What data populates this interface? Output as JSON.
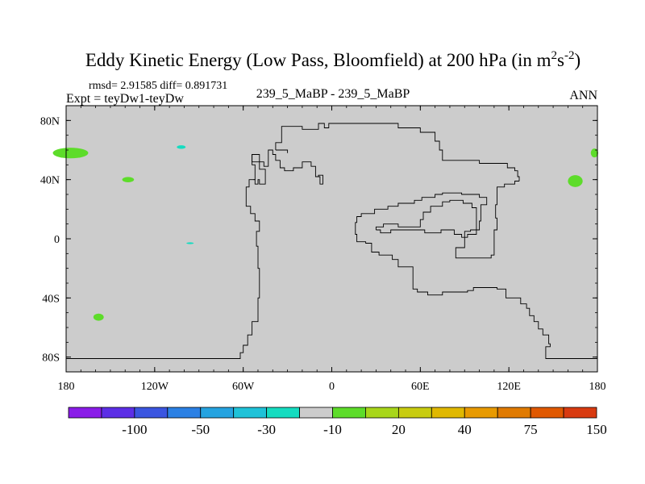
{
  "chart_data": {
    "type": "heatmap",
    "title": "Eddy Kinetic Energy (Low Pass, Bloomfield) at 200 hPa (in m",
    "title_units": {
      "sup1": "2",
      "mid": "s",
      "sup2": "-2",
      "close": ")"
    },
    "stats_label": "rmsd= 2.91585 diff= 0.891731",
    "expt_label": "Expt = teyDw1-teyDw",
    "case_label": "239_5_MaBP - 239_5_MaBP",
    "season_label": "ANN",
    "xlim": [
      -180,
      180
    ],
    "ylim": [
      -90,
      90
    ],
    "x_ticks": [
      {
        "value": -180,
        "label": "180"
      },
      {
        "value": -120,
        "label": "120W"
      },
      {
        "value": -60,
        "label": "60W"
      },
      {
        "value": 0,
        "label": "0"
      },
      {
        "value": 60,
        "label": "60E"
      },
      {
        "value": 120,
        "label": "120E"
      },
      {
        "value": 180,
        "label": "180"
      }
    ],
    "y_ticks": [
      {
        "value": 80,
        "label": "80N"
      },
      {
        "value": 40,
        "label": "40N"
      },
      {
        "value": 0,
        "label": "0"
      },
      {
        "value": -40,
        "label": "40S"
      },
      {
        "value": -80,
        "label": "80S"
      }
    ],
    "background_color": "#cccccc",
    "colorbar": {
      "colors": [
        "#8a1ce8",
        "#5c2ee6",
        "#3a55e0",
        "#2b80e4",
        "#25a3e0",
        "#1fc2d8",
        "#15dcc0",
        "#cccccc",
        "#5ddc2a",
        "#a8d61a",
        "#c8cc10",
        "#e0b800",
        "#e89a00",
        "#e07a00",
        "#e05800",
        "#d83a10"
      ],
      "labels": [
        {
          "index": 2,
          "label": "-100"
        },
        {
          "index": 4,
          "label": "-50"
        },
        {
          "index": 6,
          "label": "-30"
        },
        {
          "index": 8,
          "label": "-10"
        },
        {
          "index": 10,
          "label": "20"
        },
        {
          "index": 12,
          "label": "40"
        },
        {
          "index": 14,
          "label": "75"
        },
        {
          "index": 16,
          "label": "150"
        }
      ]
    },
    "blobs": [
      {
        "name": "blob-green-1",
        "lon": -177,
        "lat": 58,
        "rlon": 12,
        "rlat": 3.6,
        "color": "#5ddc2a"
      },
      {
        "name": "blob-cyan-1",
        "lon": -102,
        "lat": 62,
        "rlon": 3,
        "rlat": 1.2,
        "color": "#15dcc0"
      },
      {
        "name": "blob-green-2",
        "lon": -138,
        "lat": 40,
        "rlon": 4,
        "rlat": 1.8,
        "color": "#5ddc2a"
      },
      {
        "name": "blob-cyan-2",
        "lon": -96,
        "lat": -3,
        "rlon": 2.5,
        "rlat": 0.6,
        "color": "#15dcc0"
      },
      {
        "name": "blob-green-3",
        "lon": -158,
        "lat": -53,
        "rlon": 3.5,
        "rlat": 2.4,
        "color": "#5ddc2a"
      },
      {
        "name": "blob-green-4",
        "lon": 165,
        "lat": 39,
        "rlon": 5,
        "rlat": 4,
        "color": "#5ddc2a"
      },
      {
        "name": "blob-green-5",
        "lon": 178,
        "lat": 58,
        "rlon": 2.5,
        "rlat": 3,
        "color": "#5ddc2a"
      }
    ],
    "coastlines": [
      [
        [
          -180,
          -81
        ],
        [
          -62,
          -81
        ],
        [
          -62,
          -77
        ],
        [
          -60,
          -77
        ],
        [
          -60,
          -72
        ],
        [
          -57,
          -72
        ],
        [
          -57,
          -65
        ],
        [
          -54,
          -65
        ],
        [
          -54,
          -56
        ],
        [
          -50,
          -56
        ],
        [
          -50,
          -40
        ],
        [
          -49,
          -40
        ],
        [
          -49,
          -20
        ],
        [
          -50,
          -20
        ],
        [
          -50,
          -5
        ],
        [
          -51,
          -5
        ],
        [
          -51,
          5
        ],
        [
          -49,
          5
        ],
        [
          -49,
          12
        ],
        [
          -52,
          12
        ],
        [
          -52,
          17
        ],
        [
          -55,
          17
        ],
        [
          -55,
          22
        ],
        [
          -58,
          22
        ],
        [
          -58,
          35
        ],
        [
          -56,
          35
        ],
        [
          -56,
          40
        ],
        [
          -52,
          40
        ],
        [
          -52,
          50
        ],
        [
          -54,
          50
        ],
        [
          -54,
          57
        ],
        [
          -49,
          57
        ],
        [
          -49,
          52
        ],
        [
          -46,
          52
        ],
        [
          -46,
          49
        ],
        [
          -43,
          49
        ],
        [
          -43,
          60
        ],
        [
          -40,
          60
        ],
        [
          -40,
          57
        ],
        [
          -38,
          57
        ],
        [
          -38,
          53
        ],
        [
          -35,
          53
        ],
        [
          -35,
          48
        ],
        [
          -32,
          48
        ],
        [
          -32,
          46
        ],
        [
          -26,
          46
        ],
        [
          -26,
          48
        ],
        [
          -20,
          48
        ],
        [
          -20,
          52
        ],
        [
          -14,
          52
        ],
        [
          -14,
          49
        ],
        [
          -11,
          49
        ],
        [
          -11,
          42
        ],
        [
          -9,
          42
        ],
        [
          -9,
          43
        ],
        [
          -6,
          43
        ],
        [
          -6,
          37
        ],
        [
          -8,
          37
        ],
        [
          -8,
          42
        ],
        [
          -9,
          42
        ]
      ],
      [
        [
          -53,
          40
        ],
        [
          -52,
          40
        ],
        [
          -52,
          37
        ],
        [
          -50,
          37
        ],
        [
          -50,
          40
        ],
        [
          -49,
          40
        ],
        [
          -49,
          37
        ],
        [
          -45,
          37
        ],
        [
          -45,
          47
        ],
        [
          -49,
          47
        ],
        [
          -49,
          52
        ],
        [
          -54,
          52
        ],
        [
          -54,
          57
        ],
        [
          -53,
          57
        ]
      ],
      [
        [
          -38,
          60
        ],
        [
          -38,
          65
        ],
        [
          -34,
          65
        ],
        [
          -34,
          76
        ],
        [
          -20,
          76
        ],
        [
          -20,
          74
        ],
        [
          -9,
          74
        ],
        [
          -9,
          78
        ],
        [
          -5,
          78
        ],
        [
          -5,
          75
        ],
        [
          -2,
          75
        ],
        [
          -2,
          78
        ],
        [
          45,
          78
        ],
        [
          45,
          75
        ],
        [
          60,
          75
        ],
        [
          60,
          72
        ],
        [
          70,
          72
        ],
        [
          70,
          66
        ],
        [
          73,
          66
        ],
        [
          73,
          60
        ],
        [
          75,
          60
        ],
        [
          75,
          53
        ],
        [
          100,
          53
        ],
        [
          100,
          51
        ],
        [
          119,
          51
        ],
        [
          119,
          48
        ],
        [
          124,
          48
        ],
        [
          124,
          46
        ],
        [
          126,
          46
        ],
        [
          126,
          42
        ],
        [
          127,
          42
        ],
        [
          127,
          39
        ]
      ],
      [
        [
          -38,
          60
        ],
        [
          -30,
          60
        ],
        [
          -30,
          58
        ]
      ],
      [
        [
          127,
          39
        ],
        [
          124,
          39
        ],
        [
          124,
          37
        ],
        [
          117,
          37
        ],
        [
          117,
          35
        ],
        [
          112,
          35
        ],
        [
          112,
          23
        ],
        [
          111,
          23
        ],
        [
          111,
          14
        ],
        [
          112,
          14
        ],
        [
          112,
          6
        ],
        [
          110,
          6
        ],
        [
          110,
          -11
        ],
        [
          108,
          -11
        ],
        [
          108,
          -13
        ],
        [
          84,
          -13
        ],
        [
          84,
          -6
        ],
        [
          90,
          -6
        ],
        [
          90,
          5
        ],
        [
          94,
          5
        ],
        [
          94,
          6
        ],
        [
          100,
          6
        ],
        [
          100,
          12
        ],
        [
          101,
          12
        ],
        [
          101,
          23
        ],
        [
          105,
          23
        ],
        [
          105,
          28
        ],
        [
          100,
          28
        ],
        [
          100,
          30
        ],
        [
          88,
          30
        ],
        [
          88,
          31
        ],
        [
          75,
          31
        ],
        [
          75,
          30
        ],
        [
          70,
          30
        ],
        [
          70,
          28
        ],
        [
          61,
          28
        ],
        [
          61,
          26
        ],
        [
          56,
          26
        ],
        [
          56,
          24
        ],
        [
          45,
          24
        ],
        [
          45,
          22
        ],
        [
          38,
          22
        ],
        [
          38,
          20
        ],
        [
          29,
          20
        ],
        [
          29,
          17
        ],
        [
          20,
          17
        ],
        [
          20,
          15
        ],
        [
          17,
          15
        ],
        [
          17,
          11
        ],
        [
          16,
          11
        ],
        [
          16,
          3
        ],
        [
          17,
          3
        ],
        [
          17,
          -2
        ],
        [
          23,
          -2
        ],
        [
          23,
          -3
        ],
        [
          27,
          -3
        ],
        [
          27,
          -9
        ],
        [
          32,
          -9
        ],
        [
          32,
          -11
        ],
        [
          41,
          -11
        ],
        [
          41,
          -14
        ],
        [
          45,
          -14
        ],
        [
          45,
          -19
        ],
        [
          55,
          -19
        ],
        [
          55,
          -34
        ],
        [
          58,
          -34
        ],
        [
          58,
          -36
        ],
        [
          65,
          -36
        ],
        [
          65,
          -38
        ],
        [
          75,
          -38
        ],
        [
          75,
          -36
        ],
        [
          92,
          -36
        ],
        [
          92,
          -35
        ],
        [
          96,
          -35
        ],
        [
          96,
          -33
        ],
        [
          112,
          -33
        ],
        [
          112,
          -34
        ],
        [
          118,
          -34
        ],
        [
          118,
          -40
        ],
        [
          128,
          -40
        ],
        [
          128,
          -44
        ],
        [
          132,
          -44
        ],
        [
          132,
          -47
        ],
        [
          134,
          -47
        ],
        [
          134,
          -52
        ],
        [
          137,
          -52
        ],
        [
          137,
          -56
        ],
        [
          140,
          -56
        ],
        [
          140,
          -61
        ],
        [
          143,
          -61
        ],
        [
          143,
          -65
        ],
        [
          147,
          -65
        ],
        [
          147,
          -71
        ],
        [
          148,
          -71
        ],
        [
          148,
          -73
        ],
        [
          145,
          -73
        ],
        [
          145,
          -81
        ],
        [
          180,
          -81
        ]
      ],
      [
        [
          30,
          6
        ],
        [
          33,
          6
        ],
        [
          33,
          4
        ],
        [
          40,
          4
        ],
        [
          40,
          6
        ],
        [
          63,
          6
        ],
        [
          63,
          4
        ],
        [
          74,
          4
        ],
        [
          74,
          6
        ],
        [
          83,
          6
        ],
        [
          83,
          3
        ],
        [
          88,
          3
        ],
        [
          88,
          1
        ],
        [
          92,
          1
        ],
        [
          92,
          3
        ],
        [
          98,
          3
        ],
        [
          98,
          21
        ],
        [
          95,
          21
        ],
        [
          95,
          24
        ],
        [
          89,
          24
        ],
        [
          89,
          26
        ],
        [
          80,
          26
        ],
        [
          80,
          25
        ],
        [
          75,
          25
        ],
        [
          75,
          22
        ],
        [
          67,
          22
        ],
        [
          67,
          18
        ],
        [
          62,
          18
        ],
        [
          62,
          13
        ],
        [
          60,
          13
        ],
        [
          60,
          8
        ],
        [
          45,
          8
        ],
        [
          45,
          10
        ],
        [
          35,
          10
        ],
        [
          35,
          8
        ],
        [
          30,
          8
        ],
        [
          30,
          6
        ]
      ]
    ]
  }
}
